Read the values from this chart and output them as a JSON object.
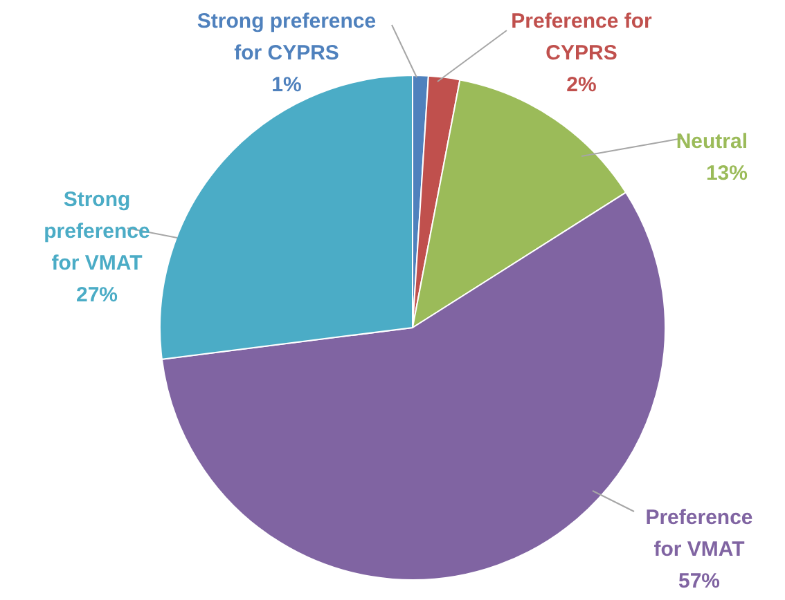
{
  "chart_data": {
    "type": "pie",
    "categories": [
      "Strong preference for CYPRS",
      "Preference for CYPRS",
      "Neutral",
      "Preference for VMAT",
      "Strong preference for VMAT"
    ],
    "values": [
      1,
      2,
      13,
      57,
      27
    ],
    "value_labels": [
      "1%",
      "2%",
      "13%",
      "57%",
      "27%"
    ],
    "colors": [
      "#4f81bd",
      "#c0504d",
      "#9bbb59",
      "#8064a2",
      "#4bacc6"
    ],
    "legend": false
  }
}
